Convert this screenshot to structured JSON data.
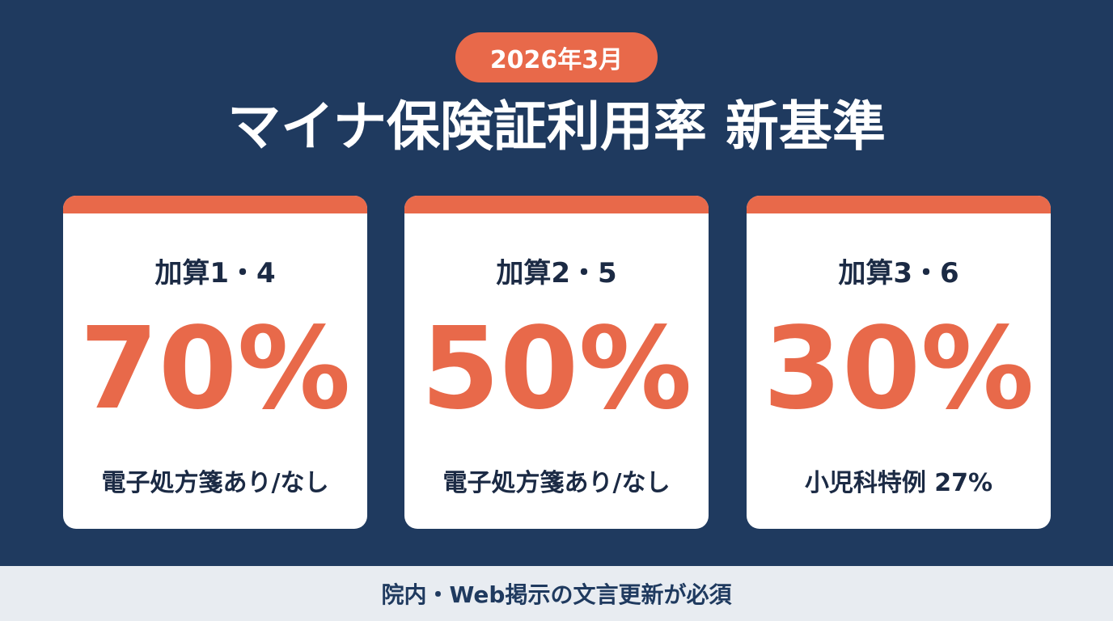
{
  "badge": "2026年3月",
  "title": "マイナ保険証利用率 新基準",
  "cards": [
    {
      "label": "加算1・4",
      "value": "70%",
      "note": "電子処方箋あり/なし"
    },
    {
      "label": "加算2・5",
      "value": "50%",
      "note": "電子処方箋あり/なし"
    },
    {
      "label": "加算3・6",
      "value": "30%",
      "note": "小児科特例 27%"
    }
  ],
  "footer": "院内・Web掲示の文言更新が必須",
  "colors": {
    "background": "#1f3a5f",
    "accent": "#e8694a",
    "card": "#ffffff",
    "footer_bg": "#e8ecf1"
  }
}
